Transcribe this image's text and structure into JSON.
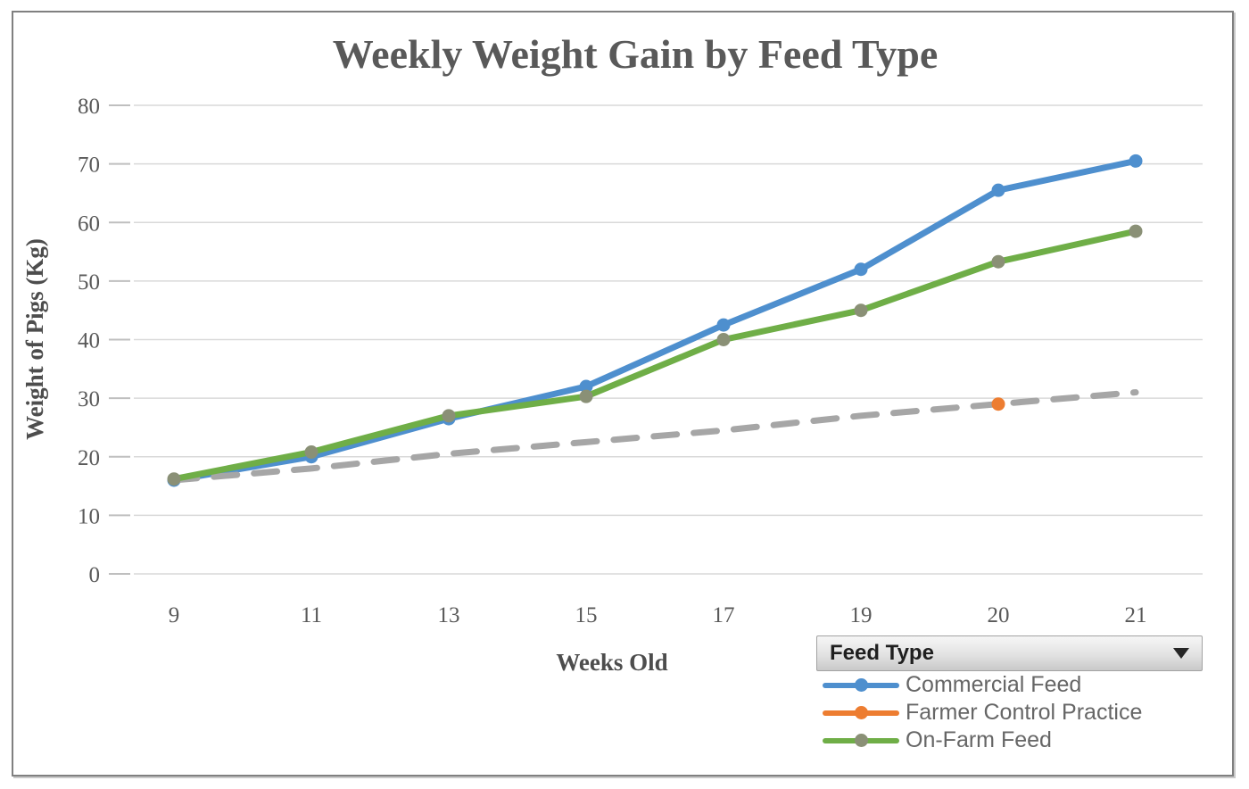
{
  "frame": {
    "border_color": "#808080",
    "background": "#ffffff"
  },
  "chart_data": {
    "type": "line",
    "title": "Weekly Weight Gain by Feed Type",
    "xlabel": "Weeks Old",
    "ylabel": "Weight of Pigs (Kg)",
    "categories": [
      "9",
      "11",
      "13",
      "15",
      "17",
      "19",
      "20",
      "21"
    ],
    "ylim": [
      0,
      80
    ],
    "yticks": [
      0,
      10,
      20,
      30,
      40,
      50,
      60,
      70,
      80
    ],
    "grid": true,
    "legend_position": "bottom-right",
    "series": [
      {
        "name": "Commercial Feed",
        "line_color": "#4e8fce",
        "marker_color": "#4e8fce",
        "legend_color": "#4e8fce",
        "legend_marker_color": "#4e8fce",
        "style": "solid",
        "values": [
          16,
          20,
          26.5,
          32,
          42.5,
          52,
          65.5,
          70.5
        ]
      },
      {
        "name": "Farmer Control Practice",
        "line_color": "#a6a6a6",
        "marker_color": "#ed7d31",
        "legend_color": "#ed7d31",
        "legend_marker_color": "#ed7d31",
        "style": "dashed",
        "values": [
          16,
          18,
          20.5,
          22.5,
          24.5,
          27,
          29,
          31
        ],
        "markers_at": [
          6
        ]
      },
      {
        "name": "On-Farm Feed",
        "line_color": "#6fae47",
        "marker_color": "#8a9076",
        "legend_color": "#6fae47",
        "legend_marker_color": "#8a9076",
        "style": "solid",
        "values": [
          16.2,
          20.8,
          27,
          30.3,
          40,
          45,
          53.3,
          58.5
        ]
      }
    ],
    "colors": {
      "gridline": "#d9d9d9",
      "tick_mark": "#bfbfbf",
      "tick_text": "#595959",
      "title_text": "#595959"
    }
  },
  "legend": {
    "field_button_label": "Feed Type"
  }
}
